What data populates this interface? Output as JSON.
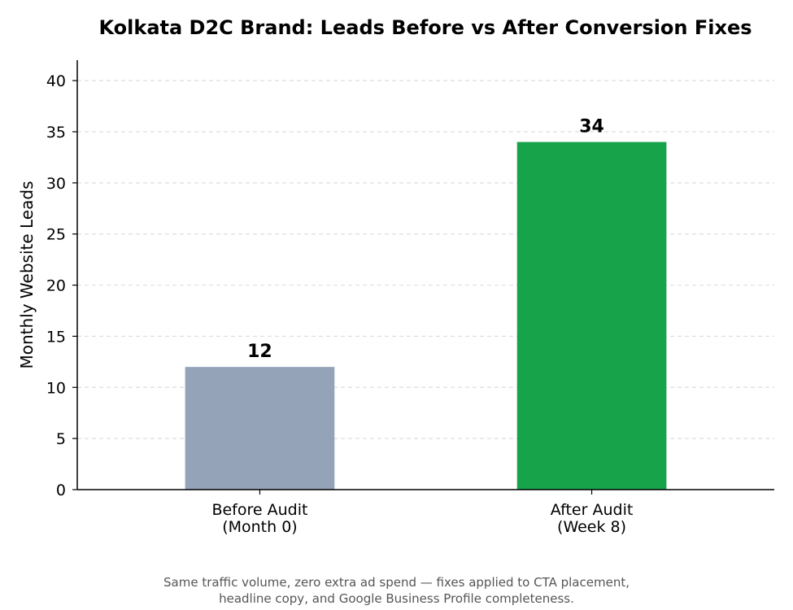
{
  "chart_data": {
    "type": "bar",
    "title": "Kolkata D2C Brand: Leads Before vs After Conversion Fixes",
    "xlabel": "",
    "ylabel": "Monthly Website Leads",
    "categories": [
      [
        "Before Audit",
        "(Month 0)"
      ],
      [
        "After Audit",
        "(Week 8)"
      ]
    ],
    "values": [
      12,
      34
    ],
    "value_labels": [
      "12",
      "34"
    ],
    "colors": [
      "#94a3b8",
      "#16a34a"
    ],
    "ylim": [
      0,
      42
    ],
    "yticks": [
      0,
      5,
      10,
      15,
      20,
      25,
      30,
      35,
      40
    ],
    "grid": "y-dashed",
    "legend": "none"
  },
  "caption": {
    "line1": "Same traffic volume, zero extra ad spend — fixes applied to CTA placement,",
    "line2": "headline copy, and Google Business Profile completeness."
  }
}
